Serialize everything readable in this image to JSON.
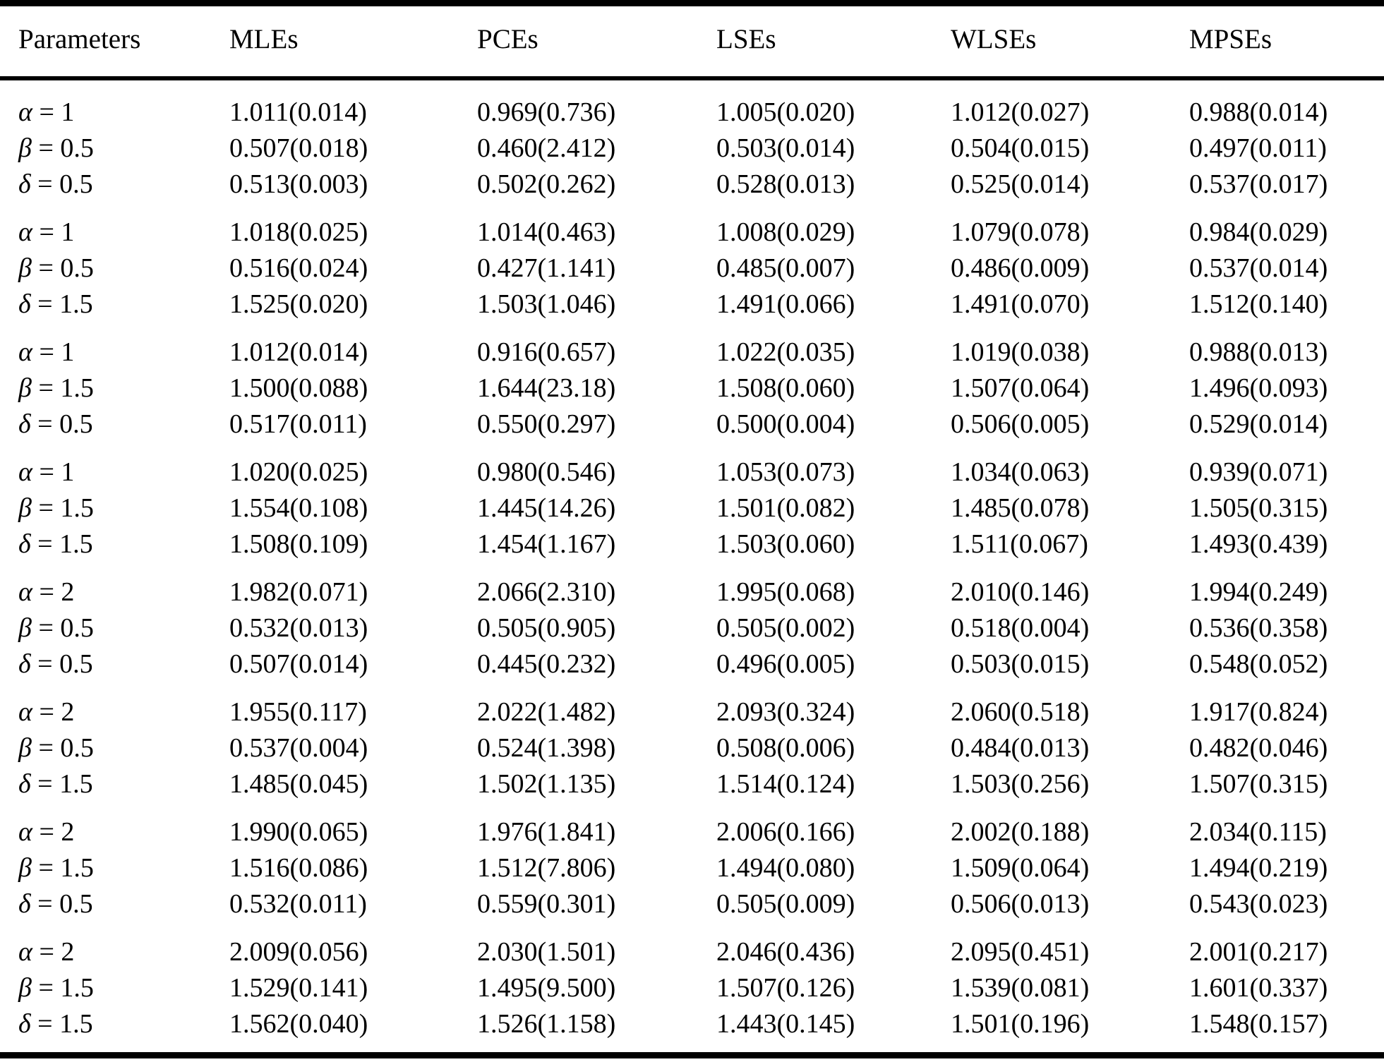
{
  "table": {
    "header": {
      "parameters_label": "Parameters",
      "estimator_labels": [
        "MLEs",
        "PCEs",
        "LSEs",
        "WLSEs",
        "MPSEs"
      ]
    },
    "groups": [
      {
        "rows": [
          {
            "symbol": "α",
            "eq": "= 1",
            "values": [
              "1.011(0.014)",
              "0.969(0.736)",
              "1.005(0.020)",
              "1.012(0.027)",
              "0.988(0.014)"
            ]
          },
          {
            "symbol": "β",
            "eq": "= 0.5",
            "values": [
              "0.507(0.018)",
              "0.460(2.412)",
              "0.503(0.014)",
              "0.504(0.015)",
              "0.497(0.011)"
            ]
          },
          {
            "symbol": "δ",
            "eq": "= 0.5",
            "values": [
              "0.513(0.003)",
              "0.502(0.262)",
              "0.528(0.013)",
              "0.525(0.014)",
              "0.537(0.017)"
            ]
          }
        ]
      },
      {
        "rows": [
          {
            "symbol": "α",
            "eq": "= 1",
            "values": [
              "1.018(0.025)",
              "1.014(0.463)",
              "1.008(0.029)",
              "1.079(0.078)",
              "0.984(0.029)"
            ]
          },
          {
            "symbol": "β",
            "eq": "= 0.5",
            "values": [
              "0.516(0.024)",
              "0.427(1.141)",
              "0.485(0.007)",
              "0.486(0.009)",
              "0.537(0.014)"
            ]
          },
          {
            "symbol": "δ",
            "eq": "= 1.5",
            "values": [
              "1.525(0.020)",
              "1.503(1.046)",
              "1.491(0.066)",
              "1.491(0.070)",
              "1.512(0.140)"
            ]
          }
        ]
      },
      {
        "rows": [
          {
            "symbol": "α",
            "eq": "= 1",
            "values": [
              "1.012(0.014)",
              "0.916(0.657)",
              "1.022(0.035)",
              "1.019(0.038)",
              "0.988(0.013)"
            ]
          },
          {
            "symbol": "β",
            "eq": "= 1.5",
            "values": [
              "1.500(0.088)",
              "1.644(23.18)",
              "1.508(0.060)",
              "1.507(0.064)",
              "1.496(0.093)"
            ]
          },
          {
            "symbol": "δ",
            "eq": "= 0.5",
            "values": [
              "0.517(0.011)",
              "0.550(0.297)",
              "0.500(0.004)",
              "0.506(0.005)",
              "0.529(0.014)"
            ]
          }
        ]
      },
      {
        "rows": [
          {
            "symbol": "α",
            "eq": "= 1",
            "values": [
              "1.020(0.025)",
              "0.980(0.546)",
              "1.053(0.073)",
              "1.034(0.063)",
              "0.939(0.071)"
            ]
          },
          {
            "symbol": "β",
            "eq": "= 1.5",
            "values": [
              "1.554(0.108)",
              "1.445(14.26)",
              "1.501(0.082)",
              "1.485(0.078)",
              "1.505(0.315)"
            ]
          },
          {
            "symbol": "δ",
            "eq": "= 1.5",
            "values": [
              "1.508(0.109)",
              "1.454(1.167)",
              "1.503(0.060)",
              "1.511(0.067)",
              "1.493(0.439)"
            ]
          }
        ]
      },
      {
        "rows": [
          {
            "symbol": "α",
            "eq": "= 2",
            "values": [
              "1.982(0.071)",
              "2.066(2.310)",
              "1.995(0.068)",
              "2.010(0.146)",
              "1.994(0.249)"
            ]
          },
          {
            "symbol": "β",
            "eq": "= 0.5",
            "values": [
              "0.532(0.013)",
              "0.505(0.905)",
              "0.505(0.002)",
              "0.518(0.004)",
              "0.536(0.358)"
            ]
          },
          {
            "symbol": "δ",
            "eq": "= 0.5",
            "values": [
              "0.507(0.014)",
              "0.445(0.232)",
              "0.496(0.005)",
              "0.503(0.015)",
              "0.548(0.052)"
            ]
          }
        ]
      },
      {
        "rows": [
          {
            "symbol": "α",
            "eq": "= 2",
            "values": [
              "1.955(0.117)",
              "2.022(1.482)",
              "2.093(0.324)",
              "2.060(0.518)",
              "1.917(0.824)"
            ]
          },
          {
            "symbol": "β",
            "eq": "= 0.5",
            "values": [
              "0.537(0.004)",
              "0.524(1.398)",
              "0.508(0.006)",
              "0.484(0.013)",
              "0.482(0.046)"
            ]
          },
          {
            "symbol": "δ",
            "eq": "= 1.5",
            "values": [
              "1.485(0.045)",
              "1.502(1.135)",
              "1.514(0.124)",
              "1.503(0.256)",
              "1.507(0.315)"
            ]
          }
        ]
      },
      {
        "rows": [
          {
            "symbol": "α",
            "eq": "= 2",
            "values": [
              "1.990(0.065)",
              "1.976(1.841)",
              "2.006(0.166)",
              "2.002(0.188)",
              "2.034(0.115)"
            ]
          },
          {
            "symbol": "β",
            "eq": "= 1.5",
            "values": [
              "1.516(0.086)",
              "1.512(7.806)",
              "1.494(0.080)",
              "1.509(0.064)",
              "1.494(0.219)"
            ]
          },
          {
            "symbol": "δ",
            "eq": "= 0.5",
            "values": [
              "0.532(0.011)",
              "0.559(0.301)",
              "0.505(0.009)",
              "0.506(0.013)",
              "0.543(0.023)"
            ]
          }
        ]
      },
      {
        "rows": [
          {
            "symbol": "α",
            "eq": "= 2",
            "values": [
              "2.009(0.056)",
              "2.030(1.501)",
              "2.046(0.436)",
              "2.095(0.451)",
              "2.001(0.217)"
            ]
          },
          {
            "symbol": "β",
            "eq": "= 1.5",
            "values": [
              "1.529(0.141)",
              "1.495(9.500)",
              "1.507(0.126)",
              "1.539(0.081)",
              "1.601(0.337)"
            ]
          },
          {
            "symbol": "δ",
            "eq": "= 1.5",
            "values": [
              "1.562(0.040)",
              "1.526(1.158)",
              "1.443(0.145)",
              "1.501(0.196)",
              "1.548(0.157)"
            ]
          }
        ]
      }
    ]
  }
}
